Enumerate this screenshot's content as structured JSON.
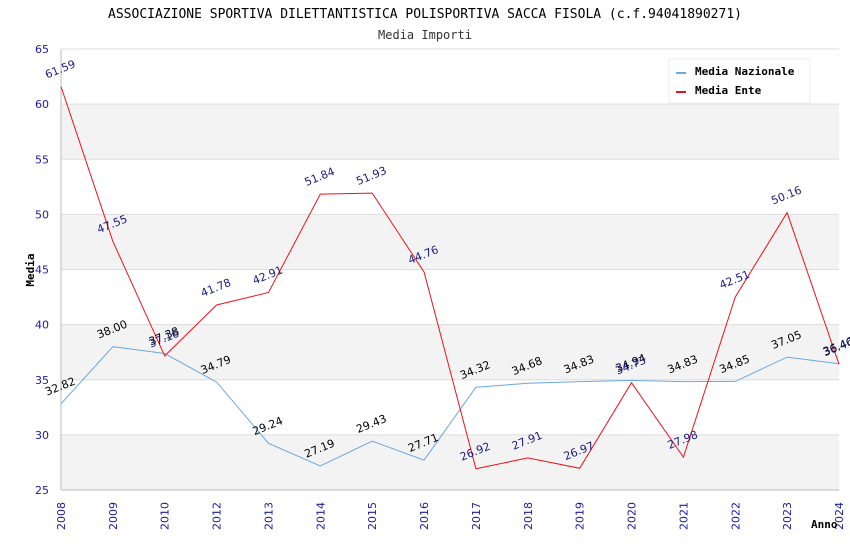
{
  "chart_data": {
    "type": "line",
    "title": "ASSOCIAZIONE SPORTIVA DILETTANTISTICA POLISPORTIVA SACCA FISOLA (c.f.94041890271)",
    "subtitle": "Media Importi",
    "xlabel": "Anno",
    "ylabel": "Media",
    "ylim": [
      25,
      65
    ],
    "yticks": [
      "25",
      "30",
      "35",
      "40",
      "45",
      "50",
      "55",
      "60",
      "65"
    ],
    "grid": true,
    "legend_position": "top-right",
    "categories": [
      "2008",
      "2009",
      "2010",
      "2012",
      "2013",
      "2014",
      "2015",
      "2016",
      "2017",
      "2018",
      "2019",
      "2020",
      "2021",
      "2022",
      "2023",
      "2024"
    ],
    "series": [
      {
        "name": "Media Nazionale",
        "color": "#6aa8e0",
        "label_color": "#000000",
        "values": [
          32.82,
          38.0,
          37.38,
          34.79,
          29.24,
          27.19,
          29.43,
          27.71,
          34.32,
          34.68,
          34.83,
          34.94,
          34.83,
          34.85,
          37.05,
          36.46
        ],
        "labels": [
          "32.82",
          "38.00",
          "37.38",
          "34.79",
          "29.24",
          "27.19",
          "29.43",
          "27.71",
          "34.32",
          "34.68",
          "34.83",
          "34.94",
          "34.83",
          "34.85",
          "37.05",
          "36.46"
        ]
      },
      {
        "name": "Media Ente",
        "color": "#e8141c",
        "label_color": "#1a1a80",
        "values": [
          61.59,
          47.55,
          37.16,
          41.78,
          42.91,
          51.84,
          51.93,
          44.76,
          26.92,
          27.91,
          26.97,
          34.73,
          27.98,
          42.51,
          50.16,
          36.4
        ],
        "labels": [
          "61.59",
          "47.55",
          "37.16",
          "41.78",
          "42.91",
          "51.84",
          "51.93",
          "44.76",
          "26.92",
          "27.91",
          "26.97",
          "34.73",
          "27.98",
          "42.51",
          "50.16",
          "36.40"
        ]
      }
    ]
  }
}
